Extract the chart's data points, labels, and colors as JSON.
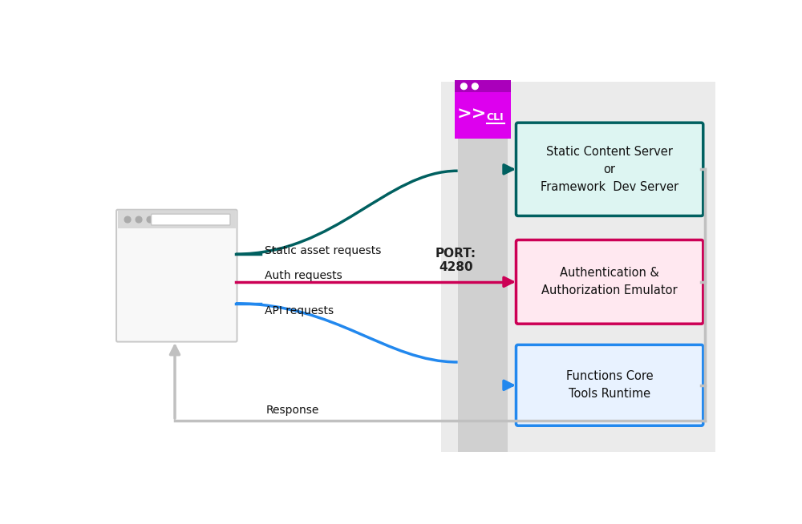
{
  "bg_color": "#ffffff",
  "panel_bg": "#ebebeb",
  "stripe_color": "#d0d0d0",
  "static_box_border": "#006060",
  "static_box_fill": "#ddf5f2",
  "auth_box_border": "#cc0055",
  "auth_box_fill": "#ffe8f0",
  "func_box_border": "#2288ee",
  "func_box_fill": "#e8f2ff",
  "arrow_static_color": "#006060",
  "arrow_auth_color": "#cc0055",
  "arrow_api_color": "#2288ee",
  "arrow_response_color": "#c0c0c0",
  "browser_border": "#c8c8c8",
  "browser_bar": "#d8d8d8",
  "cli_main": "#dd00ee",
  "cli_bar": "#aa00bb",
  "label_color": "#111111",
  "port_color": "#222222",
  "static_label": "Static asset requests",
  "auth_label": "Auth requests",
  "api_label": "API requests",
  "response_label": "Response",
  "port_label": "PORT:\n4280",
  "static_box_text": "Static Content Server\nor\nFramework  Dev Server",
  "auth_box_text": "Authentication &\nAuthorization Emulator",
  "func_box_text": "Functions Core\nTools Runtime",
  "figsize": [
    10.0,
    6.54
  ],
  "dpi": 100
}
